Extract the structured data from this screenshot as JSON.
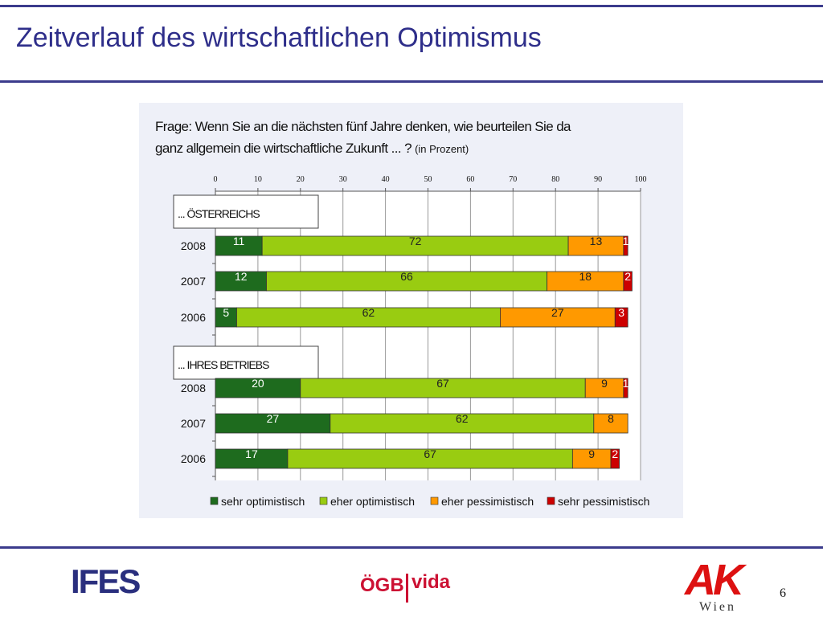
{
  "slide": {
    "title": "Zeitverlauf des wirtschaftlichen Optimismus",
    "page_number": "6",
    "logos": {
      "left": "IFES",
      "center_left": "ÖGB",
      "center_right": "vida",
      "right": "AK",
      "right_sub": "Wien"
    }
  },
  "chart_data": {
    "type": "bar",
    "orientation": "horizontal-stacked",
    "title": "Frage: Wenn Sie an die nächsten fünf Jahre denken, wie beurteilen Sie da ganz allgemein die wirtschaftliche Zukunft ... ?",
    "title_line1": "Frage: Wenn Sie an die nächsten fünf Jahre denken, wie beurteilen Sie da",
    "title_line2": "ganz allgemein die wirtschaftliche Zukunft  ... ?",
    "unit_note": "(in Prozent)",
    "xlim": [
      0,
      100
    ],
    "x_ticks": [
      "0",
      "10",
      "20",
      "30",
      "40",
      "50",
      "60",
      "70",
      "80",
      "90",
      "100"
    ],
    "grid": true,
    "legend_position": "bottom",
    "colors": [
      "#1e6b1e",
      "#99cc11",
      "#ff9900",
      "#cc0000"
    ],
    "groups": [
      {
        "label": "... ÖSTERREICHS",
        "categories": [
          "2008",
          "2007",
          "2006"
        ],
        "series": [
          {
            "name": "sehr optimistisch",
            "values": [
              11,
              12,
              5
            ]
          },
          {
            "name": "eher optimistisch",
            "values": [
              72,
              66,
              62
            ]
          },
          {
            "name": "eher pessimistisch",
            "values": [
              13,
              18,
              27
            ]
          },
          {
            "name": "sehr pessimistisch",
            "values": [
              1,
              2,
              3
            ]
          }
        ]
      },
      {
        "label": "... IHRES BETRIEBS",
        "categories": [
          "2008",
          "2007",
          "2006"
        ],
        "series": [
          {
            "name": "sehr optimistisch",
            "values": [
              20,
              27,
              17
            ]
          },
          {
            "name": "eher optimistisch",
            "values": [
              67,
              62,
              67
            ]
          },
          {
            "name": "eher pessimistisch",
            "values": [
              9,
              8,
              9
            ]
          },
          {
            "name": "sehr pessimistisch",
            "values": [
              1,
              null,
              2
            ]
          }
        ]
      }
    ]
  }
}
